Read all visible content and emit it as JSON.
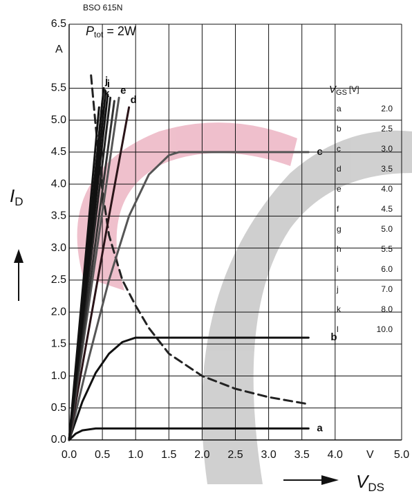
{
  "chart_data": {
    "type": "line",
    "title": "BSO 615N",
    "annotation": {
      "symbol": "P",
      "sub": "tot",
      "rest": " = 2W"
    },
    "y_label": {
      "symbol": "I",
      "sub": "D"
    },
    "y_unit": "A",
    "x_label": {
      "symbol": "V",
      "sub": "DS"
    },
    "x_unit": "V",
    "xlim": [
      0,
      5
    ],
    "ylim": [
      0,
      6.5
    ],
    "xticks": [
      {
        "value": 0,
        "label": "0.0"
      },
      {
        "value": 0.5,
        "label": "0.5"
      },
      {
        "value": 1,
        "label": "1.0"
      },
      {
        "value": 1.5,
        "label": "1.5"
      },
      {
        "value": 2,
        "label": "2.0"
      },
      {
        "value": 2.5,
        "label": "2.5"
      },
      {
        "value": 3,
        "label": "3.0"
      },
      {
        "value": 3.5,
        "label": "3.5"
      },
      {
        "value": 4,
        "label": "4.0"
      },
      {
        "value": 5,
        "label": "5.0"
      }
    ],
    "yticks": [
      {
        "value": 0,
        "label": "0.0"
      },
      {
        "value": 0.5,
        "label": "0.5"
      },
      {
        "value": 1,
        "label": "1.0"
      },
      {
        "value": 1.5,
        "label": "1.5"
      },
      {
        "value": 2,
        "label": "2.0"
      },
      {
        "value": 2.5,
        "label": "2.5"
      },
      {
        "value": 3,
        "label": "3.0"
      },
      {
        "value": 3.5,
        "label": "3.5"
      },
      {
        "value": 4,
        "label": "4.0"
      },
      {
        "value": 4.5,
        "label": "4.5"
      },
      {
        "value": 5,
        "label": "5.0"
      },
      {
        "value": 5.5,
        "label": "5.5"
      },
      {
        "value": 6.5,
        "label": "6.5"
      }
    ],
    "grid": true,
    "legend_header": {
      "symbol": "V",
      "sub": "GS",
      "unit": "[V]"
    },
    "series": [
      {
        "name": "a",
        "vgs": "2.0",
        "color": "#111111",
        "x": [
          0,
          0.1,
          0.2,
          0.4,
          3.6
        ],
        "values": [
          0,
          0.1,
          0.15,
          0.18,
          0.18
        ]
      },
      {
        "name": "b",
        "vgs": "2.5",
        "color": "#111111",
        "x": [
          0,
          0.2,
          0.4,
          0.6,
          0.8,
          1.0,
          3.6
        ],
        "values": [
          0,
          0.6,
          1.05,
          1.35,
          1.53,
          1.6,
          1.6
        ]
      },
      {
        "name": "c",
        "vgs": "3.0",
        "color": "#555555",
        "x": [
          0,
          0.3,
          0.6,
          0.9,
          1.2,
          1.5,
          1.65,
          3.6
        ],
        "values": [
          0,
          1.3,
          2.5,
          3.5,
          4.15,
          4.45,
          4.5,
          4.5
        ]
      },
      {
        "name": "d",
        "vgs": "3.5",
        "color": "#2a1418",
        "x": [
          0,
          0.6,
          0.9
        ],
        "values": [
          0,
          3.5,
          5.2
        ]
      },
      {
        "name": "e",
        "vgs": "4.0",
        "color": "#555555",
        "x": [
          0,
          0.75
        ],
        "values": [
          0,
          5.35
        ]
      },
      {
        "name": "f",
        "vgs": "4.5",
        "color": "#333333",
        "x": [
          0,
          0.68
        ],
        "values": [
          0,
          5.3
        ]
      },
      {
        "name": "g",
        "vgs": "5.0",
        "color": "#222222",
        "x": [
          0,
          0.62
        ],
        "values": [
          0,
          5.35
        ]
      },
      {
        "name": "h",
        "vgs": "5.5",
        "color": "#111111",
        "x": [
          0,
          0.58
        ],
        "values": [
          0,
          5.4
        ]
      },
      {
        "name": "i",
        "vgs": "6.0",
        "color": "#111111",
        "x": [
          0,
          0.55
        ],
        "values": [
          0,
          5.45
        ]
      },
      {
        "name": "j",
        "vgs": "7.0",
        "color": "#111111",
        "x": [
          0,
          0.52
        ],
        "values": [
          0,
          5.5
        ]
      },
      {
        "name": "k",
        "vgs": "8.0",
        "color": "#111111",
        "x": [
          0,
          0.5
        ],
        "values": [
          0,
          5.3
        ]
      },
      {
        "name": "l",
        "vgs": "10.0",
        "color": "#111111",
        "x": [
          0,
          0.45
        ],
        "values": [
          0,
          5.2
        ]
      }
    ],
    "power_curve": {
      "color": "#222222",
      "dashed": true,
      "x": [
        0.33,
        0.4,
        0.5,
        0.6,
        0.8,
        1.0,
        1.2,
        1.5,
        2.0,
        2.5,
        3.0,
        3.6
      ],
      "values": [
        5.7,
        4.9,
        3.9,
        3.2,
        2.5,
        2.1,
        1.75,
        1.35,
        1.0,
        0.8,
        0.67,
        0.56
      ]
    },
    "curve_labels": [
      "a",
      "b",
      "c",
      "d",
      "e",
      "k",
      "i",
      "j"
    ]
  }
}
